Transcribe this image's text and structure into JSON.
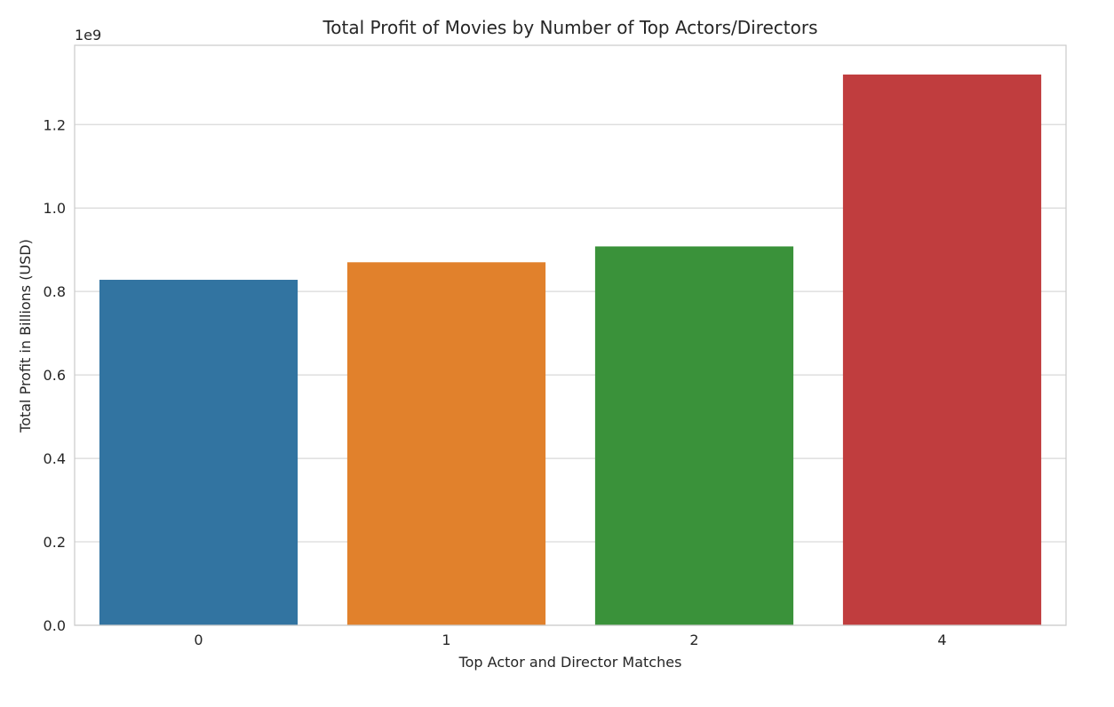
{
  "chart_data": {
    "type": "bar",
    "title": "Total Profit of Movies by Number of Top Actors/Directors",
    "xlabel": "Top Actor and Director Matches",
    "ylabel": "Total Profit in Billions (USD)",
    "categories": [
      "0",
      "1",
      "2",
      "4"
    ],
    "values": [
      828000000,
      870000000,
      908000000,
      1320000000
    ],
    "colors": [
      "#3274a1",
      "#e1812c",
      "#3a923a",
      "#c03d3e"
    ],
    "ylim": [
      0,
      1390000000
    ],
    "yticks": [
      0,
      200000000,
      400000000,
      600000000,
      800000000,
      1000000000,
      1200000000
    ],
    "ytick_labels": [
      "0.0",
      "0.2",
      "0.4",
      "0.6",
      "0.8",
      "1.0",
      "1.2"
    ],
    "y_offset_label": "1e9",
    "grid": true,
    "style": {
      "background": "#ffffff",
      "grid_color": "#d9d9d9",
      "frame_color": "#cccccc",
      "text_color": "#262626"
    }
  }
}
